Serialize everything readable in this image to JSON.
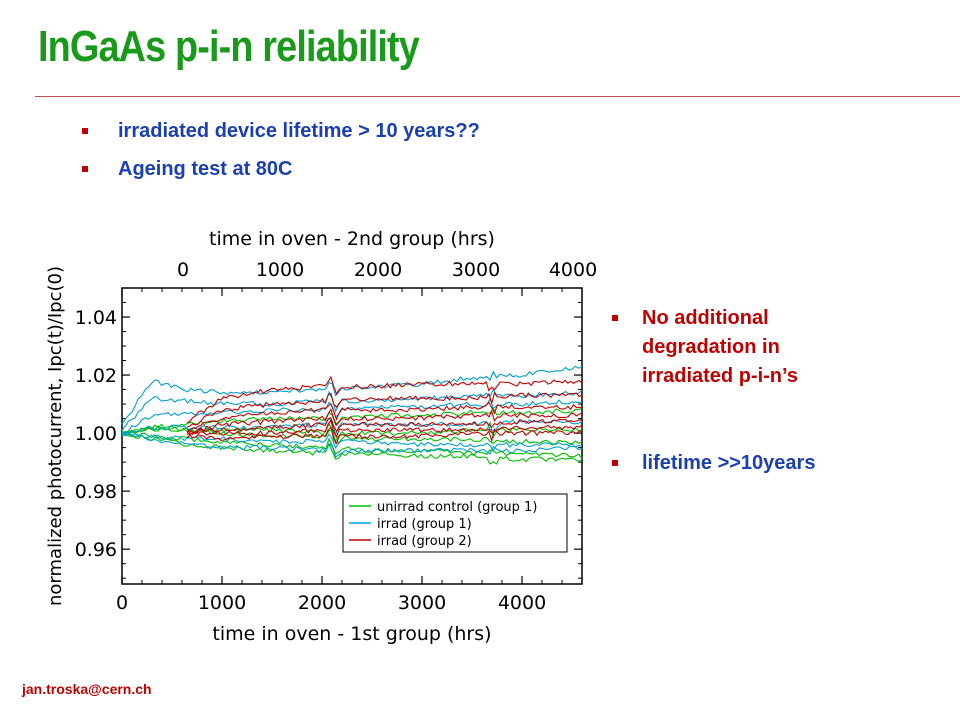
{
  "slide": {
    "title": "InGaAs p-i-n reliability",
    "bullets": [
      "irradiated device lifetime > 10 years??",
      "Ageing test at 80C"
    ],
    "right_points": [
      "No additional degradation in irradiated p-i-n’s",
      "lifetime >>10years"
    ],
    "footer_email": "jan.troska@cern.ch"
  },
  "colors": {
    "title_green": "#1a9a1a",
    "bullet_blue": "#1a3fb0",
    "accent_red": "#c00000"
  },
  "chart_data": {
    "type": "line",
    "title": "",
    "xlabel": "time in oven - 1st group (hrs)",
    "top_xlabel": "time in oven - 2nd group (hrs)",
    "ylabel": "normalized photocurrent, I_pc(t)/I_pc(0)",
    "xlim": [
      0,
      4600
    ],
    "ylim": [
      0.948,
      1.05
    ],
    "x_ticks": [
      "0",
      "1000",
      "2000",
      "3000",
      "4000"
    ],
    "top_x_ticks": [
      "0",
      "1000",
      "2000",
      "3000",
      "4000"
    ],
    "y_ticks": [
      "0.96",
      "0.98",
      "1.00",
      "1.02",
      "1.04"
    ],
    "legend_position": "bottom-right",
    "series": [
      {
        "name": "unirrad control (group 1)",
        "color": "#00c000",
        "x": [
          0,
          300,
          650,
          1000,
          1500,
          2000,
          2500,
          3000,
          3500,
          4000,
          4600
        ],
        "lines": [
          [
            1.0,
            1.002,
            1.003,
            1.004,
            1.005,
            1.005,
            1.006,
            1.006,
            1.007,
            1.007,
            1.008
          ],
          [
            1.0,
            0.999,
            0.998,
            0.997,
            0.996,
            0.995,
            0.994,
            0.994,
            0.993,
            0.993,
            0.992
          ],
          [
            1.0,
            1.001,
            1.001,
            1.001,
            1.001,
            1.0,
            1.0,
            1.0,
            1.001,
            1.001,
            1.001
          ],
          [
            1.0,
            0.998,
            0.996,
            0.995,
            0.994,
            0.993,
            0.993,
            0.992,
            0.992,
            0.991,
            0.991
          ],
          [
            1.0,
            1.002,
            1.001,
            1.0,
            0.999,
            0.999,
            0.998,
            0.998,
            0.998,
            0.997,
            0.997
          ]
        ]
      },
      {
        "name": "irrad (group 1)",
        "color": "#00a0d0",
        "x": [
          0,
          300,
          650,
          1000,
          1500,
          2000,
          2500,
          3000,
          3500,
          4000,
          4600
        ],
        "lines": [
          [
            1.003,
            1.018,
            1.015,
            1.014,
            1.014,
            1.015,
            1.016,
            1.017,
            1.019,
            1.02,
            1.023
          ],
          [
            1.001,
            1.012,
            1.011,
            1.01,
            1.01,
            1.011,
            1.011,
            1.012,
            1.013,
            1.013,
            1.014
          ],
          [
            1.0,
            1.006,
            1.007,
            1.007,
            1.008,
            1.008,
            1.009,
            1.009,
            1.01,
            1.01,
            1.011
          ],
          [
            1.0,
            1.002,
            1.002,
            1.002,
            1.002,
            1.003,
            1.003,
            1.003,
            1.003,
            1.004,
            1.004
          ],
          [
            1.0,
            0.999,
            0.998,
            0.998,
            0.997,
            0.997,
            0.997,
            0.996,
            0.996,
            0.996,
            0.996
          ],
          [
            1.0,
            0.998,
            0.996,
            0.995,
            0.995,
            0.994,
            0.994,
            0.994,
            0.994,
            0.994,
            0.995
          ]
        ]
      },
      {
        "name": "irrad (group 2)",
        "color": "#c00000",
        "x": [
          650,
          1000,
          1500,
          2000,
          2500,
          3000,
          3500,
          4000,
          4600
        ],
        "lines": [
          [
            1.004,
            1.012,
            1.015,
            1.016,
            1.016,
            1.017,
            1.017,
            1.017,
            1.018
          ],
          [
            1.002,
            1.008,
            1.01,
            1.011,
            1.012,
            1.012,
            1.012,
            1.013,
            1.013
          ],
          [
            1.001,
            1.005,
            1.007,
            1.008,
            1.008,
            1.008,
            1.009,
            1.009,
            1.009
          ],
          [
            1.0,
            1.003,
            1.004,
            1.005,
            1.005,
            1.005,
            1.006,
            1.006,
            1.006
          ],
          [
            1.0,
            1.001,
            1.002,
            1.003,
            1.003,
            1.003,
            1.003,
            1.004,
            1.004
          ],
          [
            1.0,
            1.0,
            1.0,
            1.001,
            1.001,
            1.001,
            1.001,
            1.002,
            1.002
          ],
          [
            0.999,
            0.998,
            0.999,
            0.999,
            0.999,
            0.999,
            1.0,
            1.0,
            1.0
          ]
        ]
      }
    ]
  }
}
